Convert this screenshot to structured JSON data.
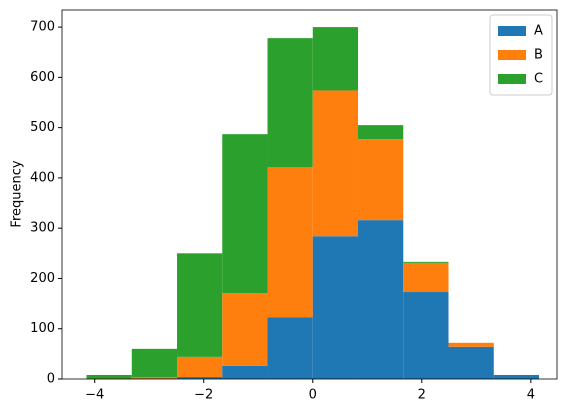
{
  "chart_data": {
    "type": "histogram",
    "stacked": true,
    "ylabel": "Frequency",
    "bins": [
      -4.15,
      -3.32,
      -2.49,
      -1.66,
      -0.83,
      0.0,
      0.83,
      1.66,
      2.49,
      3.32,
      4.15
    ],
    "series": [
      {
        "name": "A",
        "color": "#1f77b4",
        "values": [
          0,
          1,
          4,
          26,
          123,
          284,
          316,
          173,
          64,
          8
        ]
      },
      {
        "name": "B",
        "color": "#ff7f0e",
        "values": [
          1,
          3,
          40,
          145,
          298,
          290,
          161,
          58,
          8,
          0
        ]
      },
      {
        "name": "C",
        "color": "#2ca02c",
        "values": [
          7,
          56,
          206,
          316,
          257,
          126,
          28,
          2,
          0,
          0
        ]
      }
    ],
    "xlim": [
      -4.6,
      4.48
    ],
    "ylim": [
      0,
      734
    ],
    "xticks": [
      {
        "value": -4,
        "label": "−4"
      },
      {
        "value": -2,
        "label": "−2"
      },
      0,
      2,
      4
    ],
    "yticks": [
      0,
      100,
      200,
      300,
      400,
      500,
      600,
      700
    ],
    "legend": "upper right",
    "grid": false
  }
}
